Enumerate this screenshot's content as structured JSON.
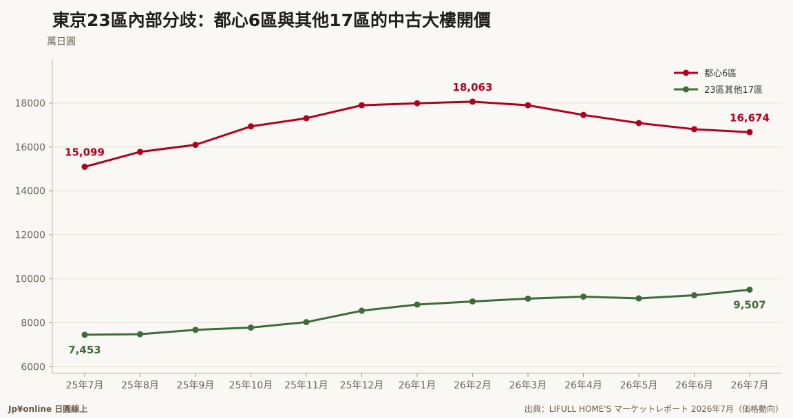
{
  "title": "東京23區內部分歧：都心6區與其他17區的中古大樓開價",
  "unit_label": "萬日圓",
  "footer": {
    "brand": "Jp¥online 日圓線上",
    "source": "出典：LIFULL HOME'S マーケットレポート 2026年7月（価格動向）"
  },
  "chart_data": {
    "type": "line",
    "categories": [
      "25年7月",
      "25年8月",
      "25年9月",
      "25年10月",
      "25年11月",
      "25年12月",
      "26年1月",
      "26年2月",
      "26年3月",
      "26年4月",
      "26年5月",
      "26年6月",
      "26年7月"
    ],
    "ylim": [
      5700,
      20000
    ],
    "yticks": [
      6000,
      8000,
      10000,
      12000,
      14000,
      16000,
      18000
    ],
    "grid": true,
    "legend_position": "top-right",
    "series": [
      {
        "name": "都心6區",
        "color": "#b0001e",
        "values": [
          15099,
          15780,
          16100,
          16940,
          17310,
          17900,
          17990,
          18063,
          17900,
          17460,
          17090,
          16810,
          16674
        ],
        "labels": [
          {
            "index": 0,
            "text": "15,099",
            "pos": "above"
          },
          {
            "index": 7,
            "text": "18,063",
            "pos": "above"
          },
          {
            "index": 12,
            "text": "16,674",
            "pos": "above"
          }
        ]
      },
      {
        "name": "23區其他17區",
        "color": "#3d6b3a",
        "values": [
          7453,
          7480,
          7680,
          7780,
          8030,
          8550,
          8830,
          8970,
          9100,
          9190,
          9110,
          9250,
          9507
        ],
        "labels": [
          {
            "index": 0,
            "text": "7,453",
            "pos": "below"
          },
          {
            "index": 12,
            "text": "9,507",
            "pos": "below"
          }
        ]
      }
    ]
  }
}
